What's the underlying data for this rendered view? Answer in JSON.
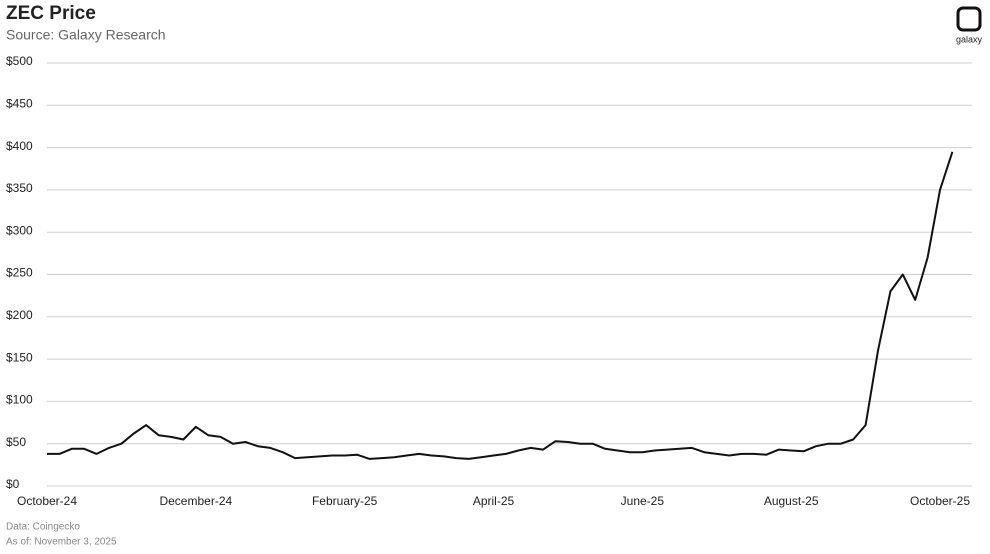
{
  "chart_data": {
    "type": "line",
    "title": "ZEC Price",
    "subtitle": "Source: Galaxy Research",
    "logo_text": "galaxy",
    "footnotes": [
      "Data: Coingecko",
      "As of: November 3, 2025"
    ],
    "categories": [
      "October-24",
      null,
      null,
      null,
      null,
      null,
      null,
      null,
      null,
      null,
      null,
      null,
      "December-24",
      null,
      null,
      null,
      null,
      null,
      null,
      null,
      null,
      null,
      null,
      null,
      "February-25",
      null,
      null,
      null,
      null,
      null,
      null,
      null,
      null,
      null,
      null,
      null,
      "April-25",
      null,
      null,
      null,
      null,
      null,
      null,
      null,
      null,
      null,
      null,
      null,
      "June-25",
      null,
      null,
      null,
      null,
      null,
      null,
      null,
      null,
      null,
      null,
      null,
      "August-25",
      null,
      null,
      null,
      null,
      null,
      null,
      null,
      null,
      null,
      null,
      null,
      "October-25",
      null
    ],
    "series": [
      {
        "name": "ZEC Price",
        "color": "#111111",
        "values": [
          38,
          38,
          44,
          44,
          38,
          45,
          50,
          62,
          72,
          60,
          58,
          55,
          70,
          60,
          58,
          50,
          52,
          47,
          45,
          40,
          33,
          34,
          35,
          36,
          36,
          37,
          32,
          33,
          34,
          36,
          38,
          36,
          35,
          33,
          32,
          34,
          36,
          38,
          42,
          45,
          43,
          53,
          52,
          50,
          50,
          44,
          42,
          40,
          40,
          42,
          43,
          44,
          45,
          40,
          38,
          36,
          38,
          38,
          37,
          43,
          42,
          41,
          47,
          50,
          50,
          55,
          72,
          160,
          230,
          250,
          220,
          270,
          350,
          395
        ]
      }
    ],
    "ylim": [
      0,
      500
    ],
    "yticks": [
      {
        "value": 0,
        "label": "$0"
      },
      {
        "value": 50,
        "label": "$50"
      },
      {
        "value": 100,
        "label": "$100"
      },
      {
        "value": 150,
        "label": "$150"
      },
      {
        "value": 200,
        "label": "$200"
      },
      {
        "value": 250,
        "label": "$250"
      },
      {
        "value": 300,
        "label": "$300"
      },
      {
        "value": 350,
        "label": "$350"
      },
      {
        "value": 400,
        "label": "$400"
      },
      {
        "value": 450,
        "label": "$450"
      },
      {
        "value": 500,
        "label": "$500"
      }
    ],
    "grid": true
  }
}
